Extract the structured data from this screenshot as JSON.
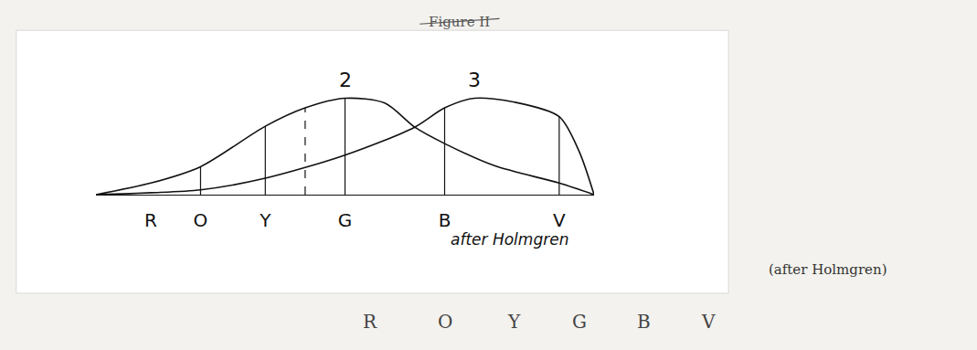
{
  "chart_data": {
    "type": "line",
    "xlim": [
      0,
      100
    ],
    "xticks": [
      {
        "value": 11,
        "label": "R"
      },
      {
        "value": 21,
        "label": "O"
      },
      {
        "value": 34,
        "label": "Y"
      },
      {
        "value": 50,
        "label": "G"
      },
      {
        "value": 70,
        "label": "B"
      },
      {
        "value": 93,
        "label": "V"
      }
    ],
    "ylim": [
      0,
      110
    ],
    "tick_labels": "x",
    "grid": false,
    "series": [
      {
        "name": "2",
        "color": "#111111",
        "line_style": "solid",
        "x": [
          0,
          11,
          21,
          34,
          42,
          50,
          58,
          64,
          70,
          80,
          93,
          100
        ],
        "values": [
          0,
          12,
          29,
          71,
          90,
          100,
          95,
          70,
          53,
          30,
          12,
          0
        ],
        "drop_lines": [
          21,
          34,
          50
        ],
        "dashed_lines": [
          42
        ]
      },
      {
        "name": "3",
        "color": "#111111",
        "line_style": "solid",
        "x": [
          0,
          11,
          21,
          34,
          50,
          64,
          70,
          76,
          84,
          93,
          97,
          100
        ],
        "values": [
          0,
          2,
          5,
          17,
          41,
          70,
          90,
          100,
          96,
          81,
          45,
          0
        ],
        "drop_lines": [
          70,
          93
        ]
      }
    ],
    "source": "after Holmgren",
    "handwritten_source": "(after Holmgren)",
    "struck_title": "Figure II",
    "handwritten_letters": [
      "R",
      "O",
      "Y",
      "G",
      "B",
      "V"
    ]
  }
}
